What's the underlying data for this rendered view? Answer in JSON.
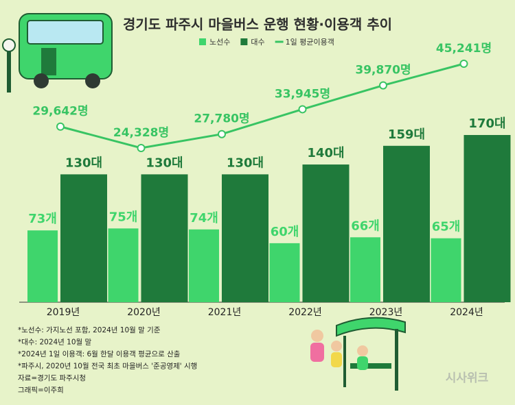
{
  "chart_data": {
    "type": "bar-line",
    "title": "경기도 파주시 마을버스 운행 현황·이용객 추이",
    "categories": [
      "2019년",
      "2020년",
      "2021년",
      "2022년",
      "2023년",
      "2024년"
    ],
    "series": [
      {
        "name": "노선수",
        "color": "#3fd56c",
        "values": [
          73,
          75,
          74,
          60,
          66,
          65
        ],
        "value_labels": [
          "73개",
          "75개",
          "74개",
          "60개",
          "66개",
          "65개"
        ]
      },
      {
        "name": "대수",
        "color": "#1f7a3b",
        "values": [
          130,
          130,
          130,
          140,
          159,
          170
        ],
        "value_labels": [
          "130대",
          "130대",
          "130대",
          "140대",
          "159대",
          "170대"
        ]
      },
      {
        "name": "1일 평균이용객",
        "color": "#38c463",
        "type": "line",
        "values": [
          29642,
          24328,
          27780,
          33945,
          39870,
          45241
        ],
        "value_labels": [
          "29,642명",
          "24,328명",
          "27,780명",
          "33,945명",
          "39,870명",
          "45,241명"
        ]
      }
    ],
    "notes": [
      "*노선수: 가지노선 포함, 2024년 10월 말 기준",
      "*대수: 2024년 10월 말",
      "*2024년 1일 이용객: 6월 한달 이용객 평균으로 산출",
      "*파주시, 2020년 10월 전국 최초 마을버스 '준공영제' 시행",
      "자료=경기도 파주시청",
      "그래픽=이주희"
    ],
    "watermark": "시사위크"
  }
}
